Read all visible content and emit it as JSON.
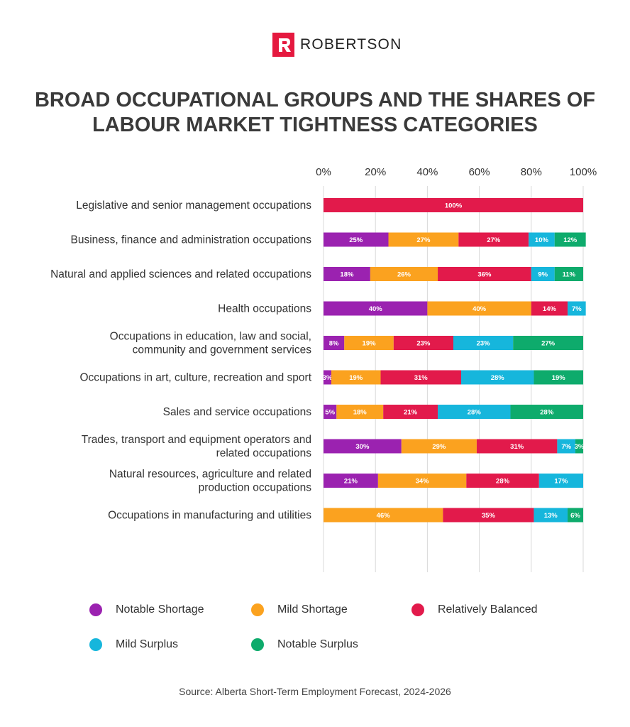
{
  "brand": {
    "name": "ROBERTSON",
    "color": "#e5193f"
  },
  "title_lines": [
    "BROAD OCCUPATIONAL GROUPS AND THE SHARES OF",
    "LABOUR MARKET TIGHTNESS CATEGORIES"
  ],
  "source": "Source: Alberta Short-Term Employment Forecast, 2024-2026",
  "chart_data": {
    "type": "bar",
    "orientation": "horizontal",
    "stacked": true,
    "title": "BROAD OCCUPATIONAL GROUPS AND THE SHARES OF LABOUR MARKET TIGHTNESS CATEGORIES",
    "xlim": [
      0,
      100
    ],
    "x_ticks": [
      "0%",
      "20%",
      "40%",
      "60%",
      "80%",
      "100%"
    ],
    "x_tick_values": [
      0,
      20,
      40,
      60,
      80,
      100
    ],
    "x_axis_position": "top",
    "grid": true,
    "legend_position": "bottom",
    "categories": [
      [
        "Legislative and senior management occupations"
      ],
      [
        "Business, finance and administration occupations"
      ],
      [
        "Natural and applied sciences and related occupations"
      ],
      [
        "Health occupations"
      ],
      [
        "Occupations in education, law and social,",
        "community and government services"
      ],
      [
        "Occupations in art, culture, recreation and sport"
      ],
      [
        "Sales and service occupations"
      ],
      [
        "Trades, transport and equipment operators and",
        "related occupations"
      ],
      [
        "Natural resources, agriculture and related",
        "production occupations"
      ],
      [
        "Occupations in manufacturing and utilities"
      ]
    ],
    "series": [
      {
        "name": "Notable Shortage",
        "color": "#9b22b0",
        "values": [
          0,
          25,
          18,
          40,
          8,
          3,
          5,
          30,
          21,
          0
        ]
      },
      {
        "name": "Mild Shortage",
        "color": "#fba21f",
        "values": [
          0,
          27,
          26,
          40,
          19,
          19,
          18,
          29,
          34,
          46
        ]
      },
      {
        "name": "Relatively Balanced",
        "color": "#e21a4b",
        "values": [
          100,
          27,
          36,
          14,
          23,
          31,
          21,
          31,
          28,
          35
        ]
      },
      {
        "name": "Mild Surplus",
        "color": "#16b6dc",
        "values": [
          0,
          10,
          9,
          7,
          23,
          28,
          28,
          7,
          17,
          13
        ]
      },
      {
        "name": "Notable Surplus",
        "color": "#0eab6c",
        "values": [
          0,
          12,
          11,
          0,
          27,
          19,
          28,
          3,
          0,
          6
        ]
      }
    ]
  }
}
